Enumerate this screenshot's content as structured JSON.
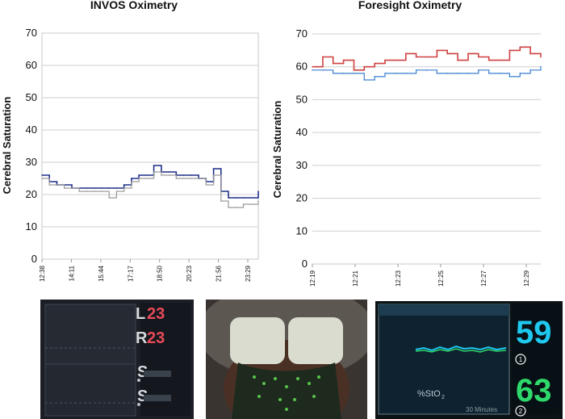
{
  "chart_data": [
    {
      "type": "line",
      "title": "INVOS Oximetry",
      "ylabel": "Cerebral Saturation",
      "xlabel": "",
      "ylim": [
        0,
        70
      ],
      "yticks": [
        0,
        10,
        20,
        30,
        40,
        50,
        60,
        70
      ],
      "xticks": [
        "12:38",
        "14:11",
        "15:44",
        "17:17",
        "18:50",
        "20:23",
        "21:56",
        "23:29"
      ],
      "x": [
        "12:38",
        "13:01",
        "13:25",
        "13:48",
        "14:11",
        "14:34",
        "14:58",
        "15:21",
        "15:44",
        "16:07",
        "16:31",
        "16:54",
        "17:17",
        "17:40",
        "18:04",
        "18:27",
        "18:50",
        "19:13",
        "19:37",
        "20:00",
        "20:23",
        "20:46",
        "21:10",
        "21:33",
        "21:56",
        "22:19",
        "22:43",
        "23:06",
        "23:29",
        "23:40"
      ],
      "series": [
        {
          "color": "#1f2f8a",
          "values": [
            26,
            24,
            23,
            23,
            22,
            22,
            22,
            22,
            22,
            22,
            22,
            23,
            25,
            26,
            26,
            29,
            27,
            27,
            26,
            26,
            26,
            25,
            24,
            28,
            21,
            19,
            19,
            19,
            19,
            21
          ]
        },
        {
          "color": "#9a9a9a",
          "values": [
            25,
            23,
            23,
            22,
            22,
            21,
            21,
            21,
            21,
            19,
            21,
            22,
            24,
            25,
            25,
            27,
            26,
            26,
            25,
            25,
            25,
            25,
            23,
            26,
            18,
            16,
            16,
            17,
            17,
            18
          ]
        }
      ],
      "grid": "horizontal",
      "legend": "none"
    },
    {
      "type": "line",
      "title": "Foresight Oximetry",
      "ylabel": "Cerebral Saturation",
      "xlabel": "",
      "ylim": [
        0,
        70
      ],
      "yticks": [
        0,
        10,
        20,
        30,
        40,
        50,
        60,
        70
      ],
      "xticks": [
        "12:19",
        "12:21",
        "12:23",
        "12:25",
        "12:27",
        "12:29"
      ],
      "x": [
        "12:19",
        "12:19:30",
        "12:20",
        "12:20:30",
        "12:21",
        "12:21:30",
        "12:22",
        "12:22:30",
        "12:23",
        "12:23:30",
        "12:24",
        "12:24:30",
        "12:25",
        "12:25:30",
        "12:26",
        "12:26:30",
        "12:27",
        "12:27:30",
        "12:28",
        "12:28:30",
        "12:29",
        "12:29:30",
        "12:30"
      ],
      "series": [
        {
          "color": "#d04040",
          "values": [
            60,
            63,
            61,
            62,
            59,
            60,
            61,
            62,
            62,
            64,
            63,
            63,
            65,
            64,
            62,
            64,
            63,
            62,
            62,
            65,
            66,
            64,
            63
          ]
        },
        {
          "color": "#3a7fd0",
          "values": [
            59,
            59,
            58,
            58,
            58,
            56,
            57,
            58,
            58,
            58,
            59,
            59,
            58,
            58,
            58,
            58,
            59,
            58,
            58,
            57,
            58,
            59,
            60
          ]
        }
      ],
      "grid": "horizontal",
      "legend": "none"
    }
  ],
  "photos": {
    "monitor": {
      "left_label": "L",
      "left_value": "23",
      "right_label": "R",
      "right_value": "23",
      "s1_label": "S",
      "s2_label": "S"
    },
    "display": {
      "value_top": "59",
      "value_bottom": "63",
      "channel_top": "1",
      "channel_bottom": "2",
      "center_label": "%StO",
      "center_sub": "2",
      "duration": "30 Minutes"
    }
  },
  "colors": {
    "invos_primary": "#1f2f8a",
    "invos_secondary": "#9a9a9a",
    "foresight_red": "#d04040",
    "foresight_blue": "#3a7fd0",
    "monitor_red": "#e94a58",
    "display_cyan": "#1ec8ee",
    "display_green": "#2fd86a"
  }
}
